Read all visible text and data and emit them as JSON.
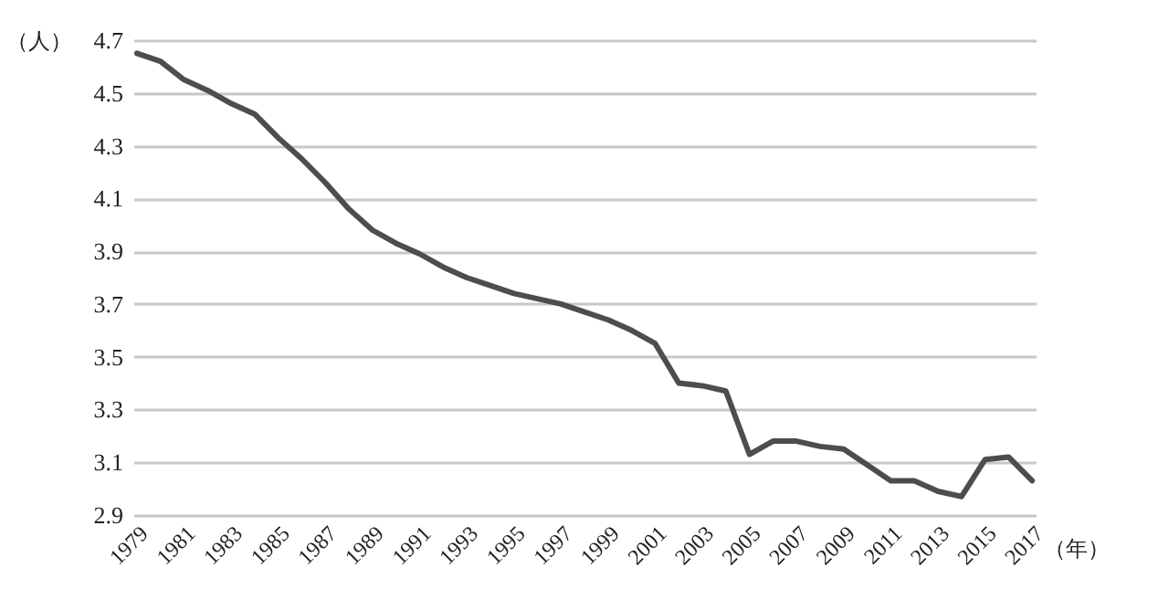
{
  "chart_data": {
    "type": "line",
    "ylabel": "（人）",
    "xlabel": "（年）",
    "categories": [
      "1979",
      null,
      "1981",
      null,
      "1983",
      null,
      "1985",
      null,
      "1987",
      null,
      "1989",
      null,
      "1991",
      null,
      "1993",
      null,
      "1995",
      null,
      "1997",
      null,
      "1999",
      null,
      "2001",
      null,
      "2003",
      null,
      "2005",
      null,
      "2007",
      null,
      "2009",
      null,
      "2011",
      null,
      "2013",
      null,
      "2015",
      null,
      "2017"
    ],
    "values": [
      4.65,
      4.62,
      4.55,
      4.51,
      4.46,
      4.42,
      4.33,
      4.25,
      4.16,
      4.06,
      3.98,
      3.93,
      3.89,
      3.84,
      3.8,
      3.77,
      3.74,
      3.72,
      3.7,
      3.67,
      3.64,
      3.6,
      3.55,
      3.4,
      3.39,
      3.37,
      3.13,
      3.18,
      3.18,
      3.16,
      3.15,
      3.09,
      3.03,
      3.03,
      2.99,
      2.97,
      3.11,
      3.12,
      3.03
    ],
    "color": "#4d4d4d",
    "ylim": [
      2.9,
      4.7
    ],
    "yticks": [
      2.9,
      3.1,
      3.3,
      3.5,
      3.7,
      3.9,
      4.1,
      4.3,
      4.5,
      4.7
    ],
    "grid": "y",
    "line_style": "solid",
    "marker": "none"
  }
}
